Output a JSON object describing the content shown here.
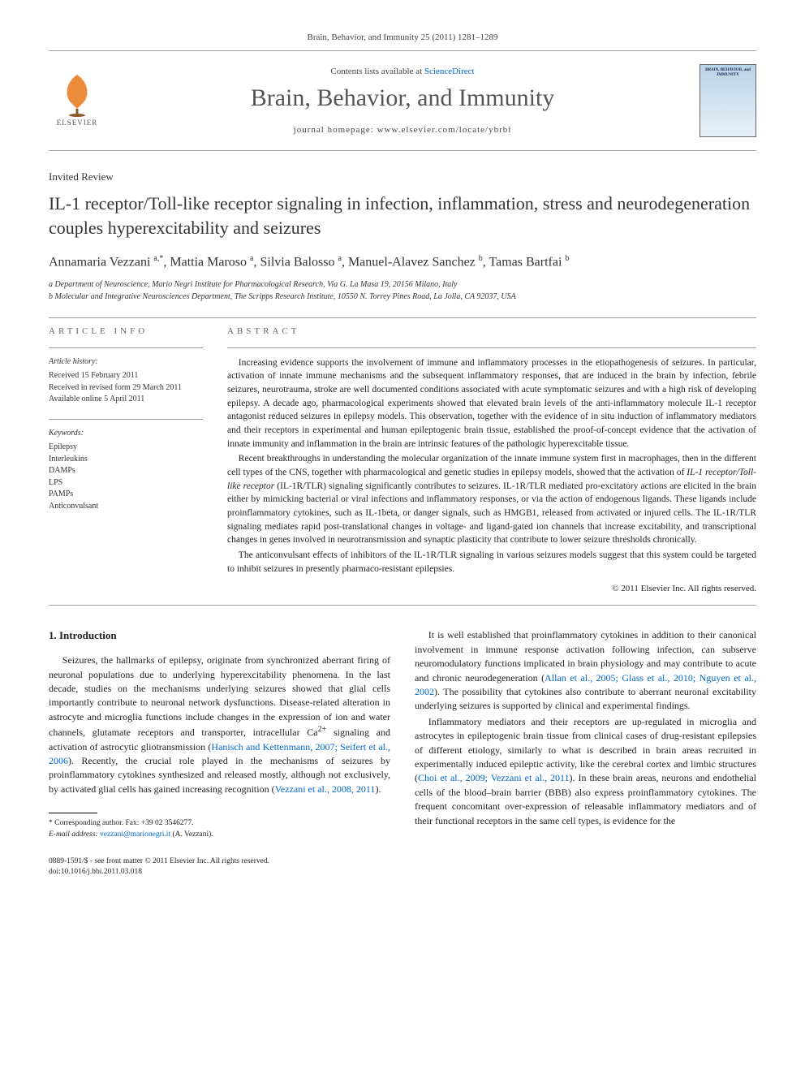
{
  "header": {
    "citation": "Brain, Behavior, and Immunity 25 (2011) 1281–1289",
    "contents_prefix": "Contents lists available at ",
    "contents_link": "ScienceDirect",
    "journal_title": "Brain, Behavior, and Immunity",
    "homepage_prefix": "journal homepage: ",
    "homepage_url": "www.elsevier.com/locate/ybrbi",
    "publisher_name": "ELSEVIER",
    "cover_text": "BRAIN, BEHAVIOR, and IMMUNITY"
  },
  "article": {
    "type": "Invited Review",
    "title": "IL-1 receptor/Toll-like receptor signaling in infection, inflammation, stress and neurodegeneration couples hyperexcitability and seizures",
    "authors_html": "Annamaria Vezzani <sup>a,*</sup>, Mattia Maroso <sup>a</sup>, Silvia Balosso <sup>a</sup>, Manuel-Alavez Sanchez <sup>b</sup>, Tamas Bartfai <sup>b</sup>",
    "affiliations": [
      "a Department of Neuroscience, Mario Negri Institute for Pharmacological Research, Via G. La Masa 19, 20156 Milano, Italy",
      "b Molecular and Integrative Neurosciences Department, The Scripps Research Institute, 10550 N. Torrey Pines Road, La Jolla, CA 92037, USA"
    ]
  },
  "info": {
    "section_label": "ARTICLE INFO",
    "history_title": "Article history:",
    "history_lines": [
      "Received 15 February 2011",
      "Received in revised form 29 March 2011",
      "Available online 5 April 2011"
    ],
    "keywords_title": "Keywords:",
    "keywords": [
      "Epilepsy",
      "Interleukins",
      "DAMPs",
      "LPS",
      "PAMPs",
      "Anticonvulsant"
    ]
  },
  "abstract": {
    "section_label": "ABSTRACT",
    "paragraphs": [
      "Increasing evidence supports the involvement of immune and inflammatory processes in the etiopathogenesis of seizures. In particular, activation of innate immune mechanisms and the subsequent inflammatory responses, that are induced in the brain by infection, febrile seizures, neurotrauma, stroke are well documented conditions associated with acute symptomatic seizures and with a high risk of developing epilepsy. A decade ago, pharmacological experiments showed that elevated brain levels of the anti-inflammatory molecule IL-1 receptor antagonist reduced seizures in epilepsy models. This observation, together with the evidence of in situ induction of inflammatory mediators and their receptors in experimental and human epileptogenic brain tissue, established the proof-of-concept evidence that the activation of innate immunity and inflammation in the brain are intrinsic features of the pathologic hyperexcitable tissue.",
      "Recent breakthroughs in understanding the molecular organization of the innate immune system first in macrophages, then in the different cell types of the CNS, together with pharmacological and genetic studies in epilepsy models, showed that the activation of IL-1 receptor/Toll-like receptor (IL-1R/TLR) signaling significantly contributes to seizures. IL-1R/TLR mediated pro-excitatory actions are elicited in the brain either by mimicking bacterial or viral infections and inflammatory responses, or via the action of endogenous ligands. These ligands include proinflammatory cytokines, such as IL-1beta, or danger signals, such as HMGB1, released from activated or injured cells. The IL-1R/TLR signaling mediates rapid post-translational changes in voltage- and ligand-gated ion channels that increase excitability, and transcriptional changes in genes involved in neurotransmission and synaptic plasticity that contribute to lower seizure thresholds chronically.",
      "The anticonvulsant effects of inhibitors of the IL-1R/TLR signaling in various seizures models suggest that this system could be targeted to inhibit seizures in presently pharmaco-resistant epilepsies."
    ],
    "copyright": "© 2011 Elsevier Inc. All rights reserved."
  },
  "body": {
    "section_number": "1.",
    "section_title": "Introduction",
    "left_paragraphs": [
      "Seizures, the hallmarks of epilepsy, originate from synchronized aberrant firing of neuronal populations due to underlying hyperexcitability phenomena. In the last decade, studies on the mechanisms underlying seizures showed that glial cells importantly contribute to neuronal network dysfunctions. Disease-related alteration in astrocyte and microglia functions include changes in the expression of ion and water channels, glutamate receptors and transporter, intracellular Ca2+ signaling and activation of astrocytic gliotransmission (Hanisch and Kettenmann, 2007; Seifert et al., 2006). Recently, the crucial role played in the mechanisms of seizures by proinflammatory cytokines synthesized and released mostly, although not exclusively, by activated glial cells has gained increasing recognition (Vezzani et al., 2008, 2011)."
    ],
    "right_paragraphs": [
      "It is well established that proinflammatory cytokines in addition to their canonical involvement in immune response activation following infection, can subserve neuromodulatory functions implicated in brain physiology and may contribute to acute and chronic neurodegeneration (Allan et al., 2005; Glass et al., 2010; Nguyen et al., 2002). The possibility that cytokines also contribute to aberrant neuronal excitability underlying seizures is supported by clinical and experimental findings.",
      "Inflammatory mediators and their receptors are up-regulated in microglia and astrocytes in epileptogenic brain tissue from clinical cases of drug-resistant epilepsies of different etiology, similarly to what is described in brain areas recruited in experimentally induced epileptic activity, like the cerebral cortex and limbic structures (Choi et al., 2009; Vezzani et al., 2011). In these brain areas, neurons and endothelial cells of the blood–brain barrier (BBB) also express proinflammatory cytokines. The frequent concomitant over-expression of releasable inflammatory mediators and of their functional receptors in the same cell types, is evidence for the"
    ],
    "refs": {
      "r1": "Hanisch and Kettenmann, 2007; Seifert et al., 2006",
      "r2": "Vezzani et al., 2008, 2011",
      "r3": "Allan et al., 2005; Glass et al., 2010; Nguyen et al., 2002",
      "r4": "Choi et al., 2009; Vezzani et al., 2011"
    }
  },
  "footnote": {
    "corresponding": "* Corresponding author. Fax: +39 02 3546277.",
    "email_label": "E-mail address:",
    "email": "vezzani@marionegri.it",
    "email_suffix": "(A. Vezzani)."
  },
  "footer": {
    "line1": "0889-1591/$ - see front matter © 2011 Elsevier Inc. All rights reserved.",
    "line2": "doi:10.1016/j.bbi.2011.03.018"
  },
  "colors": {
    "link": "#0066cc",
    "text": "#222222",
    "muted": "#555555",
    "rule": "#999999"
  }
}
